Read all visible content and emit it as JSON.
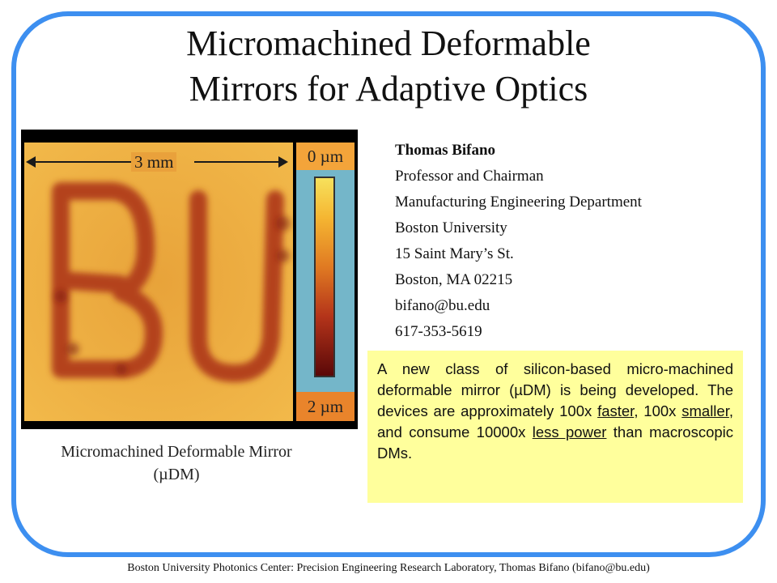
{
  "title": {
    "line1": "Micromachined Deformable",
    "line2": "Mirrors for Adaptive Optics"
  },
  "figure": {
    "scale_label": "3 mm",
    "depth_top": "0 µm",
    "depth_bottom": "2 µm",
    "colors": {
      "low": "#f7e15c",
      "mid": "#e07a22",
      "high": "#5a0808",
      "background": "#e39d33"
    },
    "caption_line1": "Micromachined Deformable Mirror",
    "caption_line2": "(µDM)"
  },
  "contact": {
    "name": "Thomas Bifano",
    "lines": [
      "Professor and Chairman",
      "Manufacturing Engineering Department",
      "Boston University",
      "15 Saint Mary’s St.",
      "Boston, MA 02215",
      "bifano@bu.edu",
      "617-353-5619"
    ]
  },
  "infobox": {
    "part1": "A new class of silicon-based micro-machined deformable mirror (µDM) is being developed. The devices are approximately 100x ",
    "faster": "faster",
    "part2": ", 100x ",
    "smaller": "smaller",
    "part3": ", and consume 10000x ",
    "less_power": "less power",
    "part4": " than macroscopic DMs."
  },
  "footer": "Boston University Photonics Center: Precision Engineering Research Laboratory, Thomas Bifano (bifano@bu.edu)",
  "accent_color": "#3d8ff0"
}
